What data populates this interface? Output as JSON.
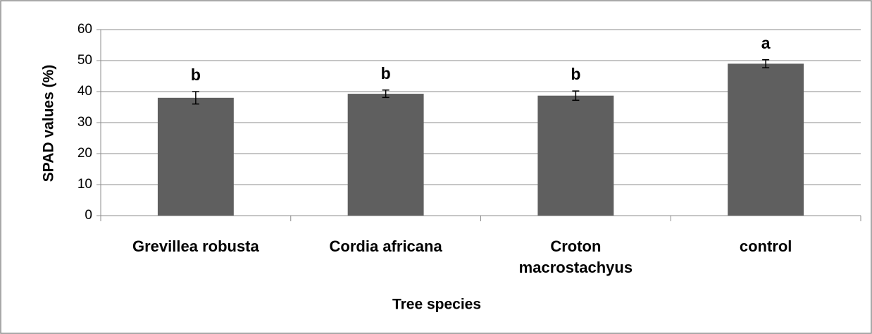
{
  "chart_data": {
    "type": "bar",
    "x_label": "Tree species",
    "y_label": "SPAD values (%)",
    "categories": [
      "Grevillea robusta",
      "Cordia africana",
      "Croton macrostachyus",
      "control"
    ],
    "values": [
      38,
      39.3,
      38.7,
      49
    ],
    "errors": [
      2,
      1.2,
      1.5,
      1.3
    ],
    "annotations": [
      "b",
      "b",
      "b",
      "a"
    ],
    "color": "#5f5f5f",
    "ylim": [
      0,
      60
    ],
    "yticks": [
      0,
      10,
      20,
      30,
      40,
      50,
      60
    ],
    "grid": true
  }
}
